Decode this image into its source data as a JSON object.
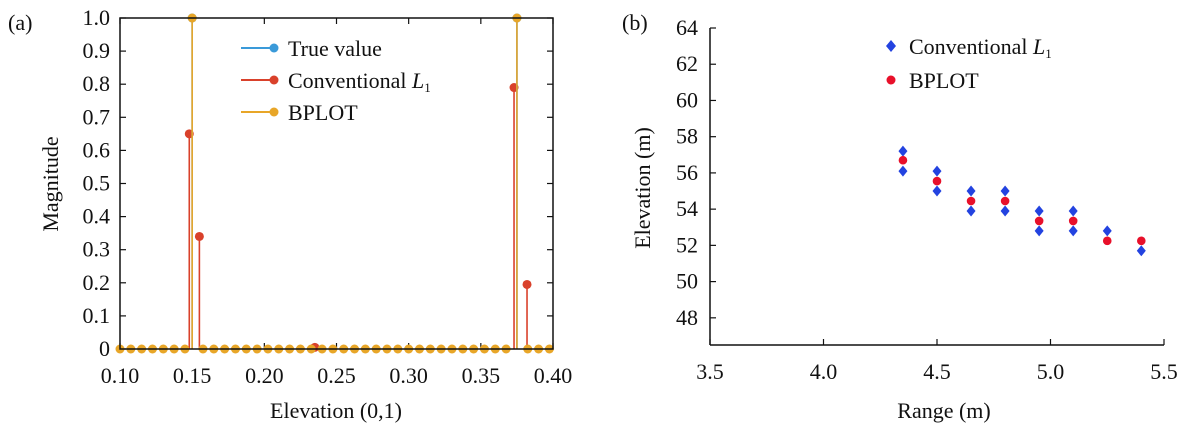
{
  "chart_data": [
    {
      "type": "line",
      "panel_label": "(a)",
      "xlabel": "Elevation (0,1)",
      "ylabel": "Magnitude",
      "xlim": [
        0.1,
        0.4
      ],
      "ylim": [
        0,
        1.0
      ],
      "xticks": [
        "0.10",
        "0.15",
        "0.20",
        "0.25",
        "0.30",
        "0.35",
        "0.40"
      ],
      "yticks": [
        "0",
        "0.1",
        "0.2",
        "0.3",
        "0.4",
        "0.5",
        "0.6",
        "0.7",
        "0.8",
        "0.9",
        "1.0"
      ],
      "legend_position": "top-right",
      "grid": false,
      "series": [
        {
          "name": "True value",
          "color": "#3a9ad9",
          "style": "stem",
          "points": [
            {
              "x": 0.15,
              "y": 1.0
            },
            {
              "x": 0.375,
              "y": 1.0
            }
          ]
        },
        {
          "name": "Conventional L1",
          "color": "#d9412b",
          "style": "stem",
          "points": [
            {
              "x": 0.148,
              "y": 0.65
            },
            {
              "x": 0.155,
              "y": 0.34
            },
            {
              "x": 0.235,
              "y": 0.005
            },
            {
              "x": 0.373,
              "y": 0.79
            },
            {
              "x": 0.382,
              "y": 0.195
            }
          ]
        },
        {
          "name": "BPLOT",
          "color": "#e8a628",
          "style": "stem",
          "points": [
            {
              "x": 0.1,
              "y": 0
            },
            {
              "x": 0.1075,
              "y": 0
            },
            {
              "x": 0.115,
              "y": 0
            },
            {
              "x": 0.1225,
              "y": 0
            },
            {
              "x": 0.13,
              "y": 0
            },
            {
              "x": 0.1375,
              "y": 0
            },
            {
              "x": 0.145,
              "y": 0
            },
            {
              "x": 0.15,
              "y": 1.0
            },
            {
              "x": 0.1575,
              "y": 0
            },
            {
              "x": 0.165,
              "y": 0
            },
            {
              "x": 0.1725,
              "y": 0
            },
            {
              "x": 0.18,
              "y": 0
            },
            {
              "x": 0.1875,
              "y": 0
            },
            {
              "x": 0.195,
              "y": 0
            },
            {
              "x": 0.2025,
              "y": 0
            },
            {
              "x": 0.21,
              "y": 0
            },
            {
              "x": 0.2175,
              "y": 0
            },
            {
              "x": 0.225,
              "y": 0
            },
            {
              "x": 0.2325,
              "y": 0
            },
            {
              "x": 0.24,
              "y": 0
            },
            {
              "x": 0.2475,
              "y": 0
            },
            {
              "x": 0.255,
              "y": 0
            },
            {
              "x": 0.2625,
              "y": 0
            },
            {
              "x": 0.27,
              "y": 0
            },
            {
              "x": 0.2775,
              "y": 0
            },
            {
              "x": 0.285,
              "y": 0
            },
            {
              "x": 0.2925,
              "y": 0
            },
            {
              "x": 0.3,
              "y": 0
            },
            {
              "x": 0.3075,
              "y": 0
            },
            {
              "x": 0.315,
              "y": 0
            },
            {
              "x": 0.3225,
              "y": 0
            },
            {
              "x": 0.33,
              "y": 0
            },
            {
              "x": 0.3375,
              "y": 0
            },
            {
              "x": 0.345,
              "y": 0
            },
            {
              "x": 0.3525,
              "y": 0
            },
            {
              "x": 0.36,
              "y": 0
            },
            {
              "x": 0.3675,
              "y": 0
            },
            {
              "x": 0.375,
              "y": 1.0
            },
            {
              "x": 0.3825,
              "y": 0
            },
            {
              "x": 0.39,
              "y": 0
            },
            {
              "x": 0.3975,
              "y": 0
            }
          ]
        }
      ]
    },
    {
      "type": "scatter",
      "panel_label": "(b)",
      "xlabel": "Range (m)",
      "ylabel": "Elevation (m)",
      "xlim": [
        3.5,
        5.5
      ],
      "ylim": [
        46.5,
        64
      ],
      "xticks": [
        "3.5",
        "4.0",
        "4.5",
        "5.0",
        "5.5"
      ],
      "yticks": [
        "48",
        "50",
        "52",
        "54",
        "56",
        "58",
        "60",
        "62",
        "64"
      ],
      "legend_position": "top-right",
      "grid": false,
      "series": [
        {
          "name": "Conventional L1",
          "color": "#2343e0",
          "marker": "diamond",
          "points": [
            {
              "x": 4.35,
              "y": 57.2
            },
            {
              "x": 4.35,
              "y": 56.1
            },
            {
              "x": 4.5,
              "y": 56.1
            },
            {
              "x": 4.5,
              "y": 55.0
            },
            {
              "x": 4.65,
              "y": 55.0
            },
            {
              "x": 4.65,
              "y": 53.9
            },
            {
              "x": 4.8,
              "y": 55.0
            },
            {
              "x": 4.8,
              "y": 53.9
            },
            {
              "x": 4.95,
              "y": 53.9
            },
            {
              "x": 4.95,
              "y": 52.8
            },
            {
              "x": 5.1,
              "y": 53.9
            },
            {
              "x": 5.1,
              "y": 52.8
            },
            {
              "x": 5.25,
              "y": 52.8
            },
            {
              "x": 5.4,
              "y": 51.7
            }
          ]
        },
        {
          "name": "BPLOT",
          "color": "#e8102a",
          "marker": "circle",
          "points": [
            {
              "x": 4.35,
              "y": 56.7
            },
            {
              "x": 4.5,
              "y": 55.55
            },
            {
              "x": 4.65,
              "y": 54.45
            },
            {
              "x": 4.8,
              "y": 54.45
            },
            {
              "x": 4.95,
              "y": 53.35
            },
            {
              "x": 5.1,
              "y": 53.35
            },
            {
              "x": 5.25,
              "y": 52.25
            },
            {
              "x": 5.4,
              "y": 52.25
            }
          ]
        }
      ]
    }
  ]
}
